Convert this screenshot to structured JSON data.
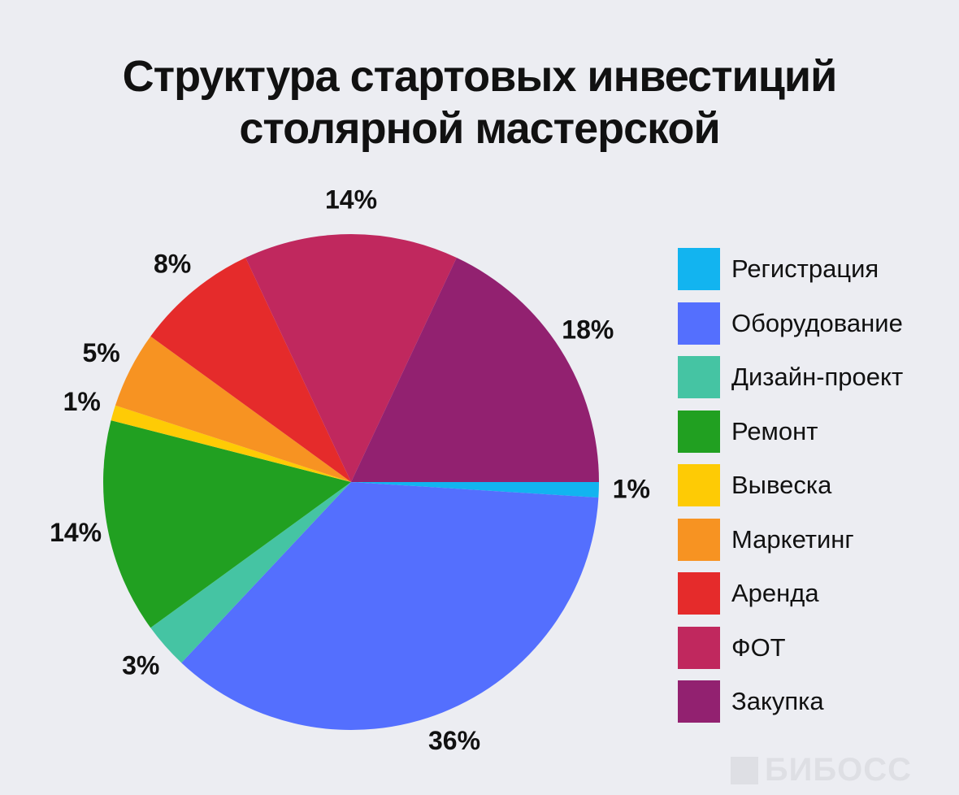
{
  "title": {
    "line1": "Структура стартовых инвестиций",
    "line2": "столярной мастерской"
  },
  "watermark": "БИБОСС",
  "chart_data": {
    "type": "pie",
    "slices": [
      {
        "label": "Регистрация",
        "value": 1,
        "value_label": "1%",
        "color": "#12b4f0"
      },
      {
        "label": "Оборудование",
        "value": 36,
        "value_label": "36%",
        "color": "#546ffe"
      },
      {
        "label": "Дизайн-проект",
        "value": 3,
        "value_label": "3%",
        "color": "#45c4a3"
      },
      {
        "label": "Ремонт",
        "value": 14,
        "value_label": "14%",
        "color": "#21a021"
      },
      {
        "label": "Вывеска",
        "value": 1,
        "value_label": "1%",
        "color": "#fecb05"
      },
      {
        "label": "Маркетинг",
        "value": 5,
        "value_label": "5%",
        "color": "#f79322"
      },
      {
        "label": "Аренда",
        "value": 8,
        "value_label": "8%",
        "color": "#e52b2b"
      },
      {
        "label": "ФОТ",
        "value": 14,
        "value_label": "14%",
        "color": "#c0285e"
      },
      {
        "label": "Закупка",
        "value": 18,
        "value_label": "18%",
        "color": "#922170"
      }
    ],
    "legend_position": "right"
  }
}
